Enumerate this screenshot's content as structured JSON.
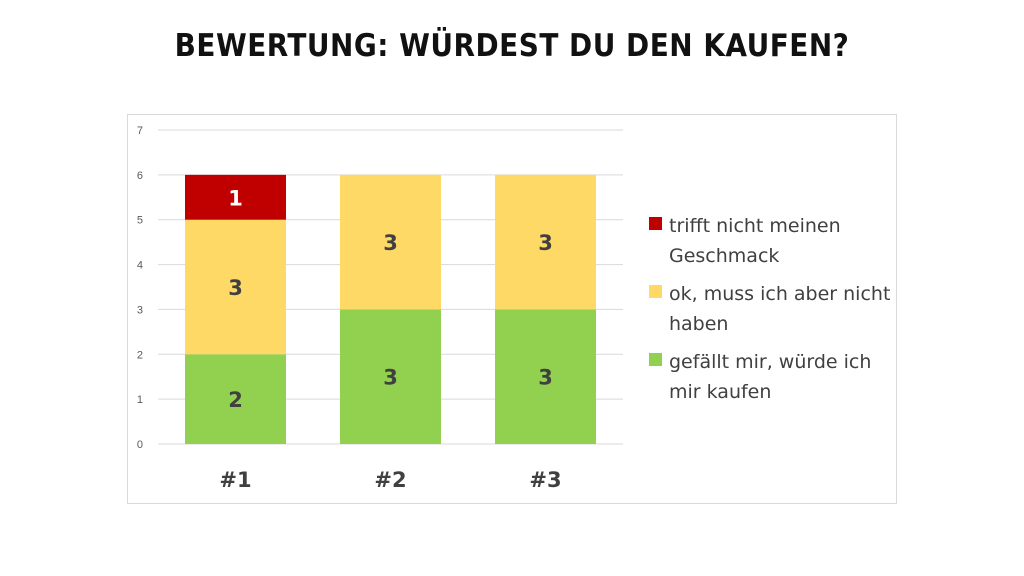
{
  "page": {
    "title": "BEWERTUNG: WÜRDEST DU DEN KAUFEN?"
  },
  "colors": {
    "red": "#c00000",
    "yellow": "#ffd966",
    "green": "#92d050",
    "gridline": "#d9d9d9",
    "label_dark": "#404040",
    "label_light": "#ffffff"
  },
  "chart_data": {
    "type": "bar",
    "stacked": true,
    "title": "BEWERTUNG: WÜRDEST DU DEN KAUFEN?",
    "categories": [
      "#1",
      "#2",
      "#3"
    ],
    "series": [
      {
        "name": "gefällt mir, würde ich mir kaufen",
        "values": [
          2,
          3,
          3
        ],
        "color": "#92d050"
      },
      {
        "name": "ok, muss ich aber nicht haben",
        "values": [
          3,
          3,
          3
        ],
        "color": "#ffd966"
      },
      {
        "name": "trifft nicht meinen Geschmack",
        "values": [
          1,
          0,
          0
        ],
        "color": "#c00000"
      }
    ],
    "ylim": [
      0,
      7
    ],
    "yticks": [
      0,
      1,
      2,
      3,
      4,
      5,
      6,
      7
    ],
    "grid": true,
    "data_labels": true,
    "legend_position": "right",
    "xlabel": "",
    "ylabel": ""
  },
  "legend": {
    "items": [
      {
        "label": "trifft nicht meinen Geschmack",
        "color": "#c00000"
      },
      {
        "label": "ok, muss ich aber nicht haben",
        "color": "#ffd966"
      },
      {
        "label": "gefällt mir, würde ich mir kaufen",
        "color": "#92d050"
      }
    ]
  }
}
